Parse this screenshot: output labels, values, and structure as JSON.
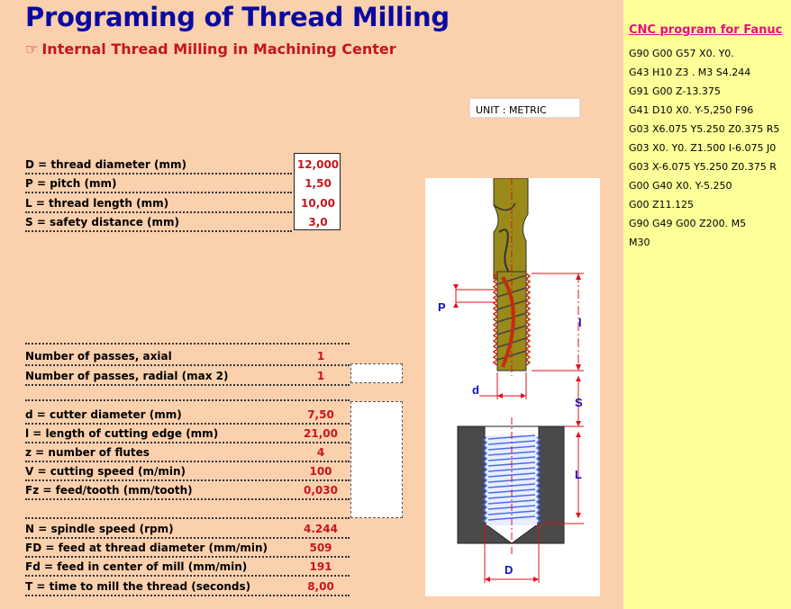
{
  "title": "Programing of Thread Milling",
  "subtitle": "Internal Thread Milling in Machining Center",
  "subtitle_icon": "pointing-hand-icon",
  "unit_label": "UNIT : METRIC",
  "inputs": [
    {
      "label": "D = thread diameter (mm)",
      "value": "12,000"
    },
    {
      "label": "P = pitch (mm)",
      "value": "1,50"
    },
    {
      "label": "L = thread length (mm)",
      "value": "10,00"
    },
    {
      "label": "S = safety distance (mm)",
      "value": "3,0"
    }
  ],
  "passes": [
    {
      "label": "Number of passes, axial",
      "value": "1"
    },
    {
      "label": "Number of passes, radial (max 2)",
      "value": "1"
    }
  ],
  "cutter": [
    {
      "label": "d = cutter diameter (mm)",
      "value": "7,50"
    },
    {
      "label": "l = length of cutting edge (mm)",
      "value": "21,00"
    },
    {
      "label": "z = number of flutes",
      "value": "4"
    },
    {
      "label": "V = cutting speed (m/min)",
      "value": "100"
    },
    {
      "label": "Fz = feed/tooth (mm/tooth)",
      "value": "0,030"
    }
  ],
  "results": [
    {
      "label": "N = spindle speed (rpm)",
      "value": "4.244"
    },
    {
      "label": "FD = feed at thread diameter (mm/min)",
      "value": "509"
    },
    {
      "label": "Fd = feed in center of mill (mm/min)",
      "value": "191"
    },
    {
      "label": "T = time to mill the thread (seconds)",
      "value": "8,00"
    }
  ],
  "cnc": {
    "title": "CNC program for Fanuc",
    "lines": [
      "G90 G00 G57 X0. Y0.",
      "G43 H10 Z3 . M3 S4.244",
      "G91 G00 Z-13.375",
      "G41 D10 X0. Y-5,250 F96",
      "G03 X6.075 Y5.250 Z0.375 R5",
      "G03 X0. Y0. Z1.500 I-6.075 J0",
      "G03 X-6.075 Y5.250 Z0.375 R",
      "G00 G40 X0. Y-5.250",
      "G00 Z11.125",
      "G90 G49 G00 Z200. M5",
      "M30"
    ]
  },
  "diagram_labels": {
    "P": "P",
    "l": "l",
    "S": "S",
    "L": "L",
    "d": "d",
    "D": "D"
  },
  "colors": {
    "background": "#fbd0ad",
    "title": "#0a0aa0",
    "subtitle": "#c4161c",
    "value": "#c8161c",
    "cnc_panel": "#ffff99",
    "cnc_title": "#e2117a",
    "dimension": "#e0101a",
    "cutter_body": "#9a8a1a",
    "thread_blue": "#4a6cf0",
    "workpiece": "#4a4a4a"
  }
}
